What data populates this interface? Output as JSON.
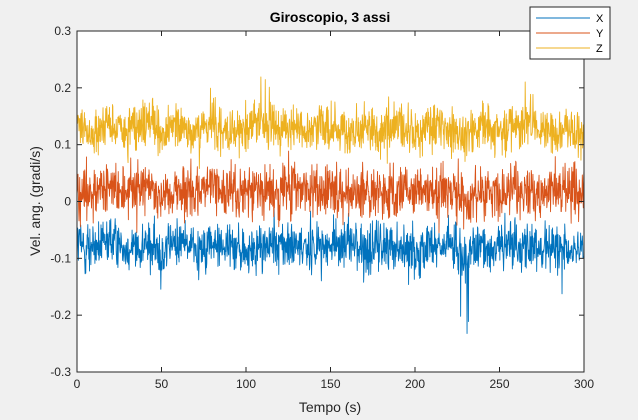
{
  "chart_data": {
    "type": "line",
    "title": "Giroscopio, 3 assi",
    "xlabel": "Tempo (s)",
    "ylabel": "Vel. ang. (gradi/s)",
    "xlim": [
      0,
      300
    ],
    "ylim": [
      -0.3,
      0.3
    ],
    "xticks": [
      0,
      50,
      100,
      150,
      200,
      250,
      300
    ],
    "xtick_labels": [
      "0",
      "50",
      "100",
      "150",
      "200",
      "250",
      "300"
    ],
    "yticks": [
      0.3,
      0.2,
      0.1,
      0,
      -0.1,
      -0.2,
      -0.3
    ],
    "ytick_labels": [
      "0.3",
      "0.2",
      "0.1",
      "0",
      "-0.1",
      "-0.2",
      "-0.3"
    ],
    "grid": false,
    "legend_position": "top-right",
    "series": [
      {
        "name": "X",
        "color": "#0072bd",
        "x": [
          0,
          10,
          20,
          30,
          40,
          50,
          60,
          70,
          80,
          90,
          100,
          110,
          120,
          130,
          140,
          150,
          160,
          170,
          180,
          190,
          200,
          210,
          220,
          230,
          240,
          250,
          260,
          270,
          280,
          290,
          300
        ],
        "y": [
          -0.06,
          -0.13,
          -0.04,
          -0.11,
          -0.08,
          -0.16,
          -0.05,
          -0.12,
          -0.09,
          -0.07,
          -0.2,
          -0.1,
          -0.06,
          -0.14,
          -0.08,
          -0.11,
          -0.05,
          -0.13,
          -0.09,
          -0.07,
          -0.17,
          -0.1,
          -0.06,
          -0.24,
          -0.09,
          -0.12,
          -0.05,
          -0.15,
          -0.08,
          -0.2,
          -0.07
        ]
      },
      {
        "name": "Y",
        "color": "#d95319",
        "x": [
          0,
          10,
          20,
          30,
          40,
          50,
          60,
          70,
          80,
          90,
          100,
          110,
          120,
          130,
          140,
          150,
          160,
          170,
          180,
          190,
          200,
          210,
          220,
          230,
          240,
          250,
          260,
          270,
          280,
          290,
          300
        ],
        "y": [
          0.02,
          -0.04,
          0.05,
          -0.02,
          0.08,
          -0.05,
          0.03,
          -0.01,
          0.06,
          -0.06,
          0.0,
          0.04,
          -0.03,
          0.07,
          -0.02,
          0.01,
          -0.05,
          0.05,
          0.0,
          -0.03,
          0.06,
          -0.01,
          0.03,
          -0.06,
          0.04,
          -0.02,
          0.05,
          -0.03,
          0.01,
          -0.04,
          0.02
        ]
      },
      {
        "name": "Z",
        "color": "#edb120",
        "x": [
          0,
          10,
          20,
          30,
          40,
          50,
          60,
          70,
          80,
          90,
          100,
          110,
          120,
          130,
          140,
          150,
          160,
          170,
          180,
          190,
          200,
          210,
          220,
          230,
          240,
          250,
          260,
          270,
          280,
          290,
          300
        ],
        "y": [
          0.15,
          0.1,
          0.19,
          0.08,
          0.22,
          0.12,
          0.17,
          0.06,
          0.2,
          0.11,
          0.14,
          0.24,
          0.09,
          0.16,
          0.13,
          0.2,
          0.07,
          0.15,
          0.12,
          0.21,
          0.1,
          0.17,
          0.13,
          0.08,
          0.19,
          0.12,
          0.16,
          0.23,
          0.1,
          0.14,
          0.11
        ]
      }
    ],
    "noise": {
      "X": 0.055,
      "Y": 0.058,
      "Z": 0.052
    }
  }
}
